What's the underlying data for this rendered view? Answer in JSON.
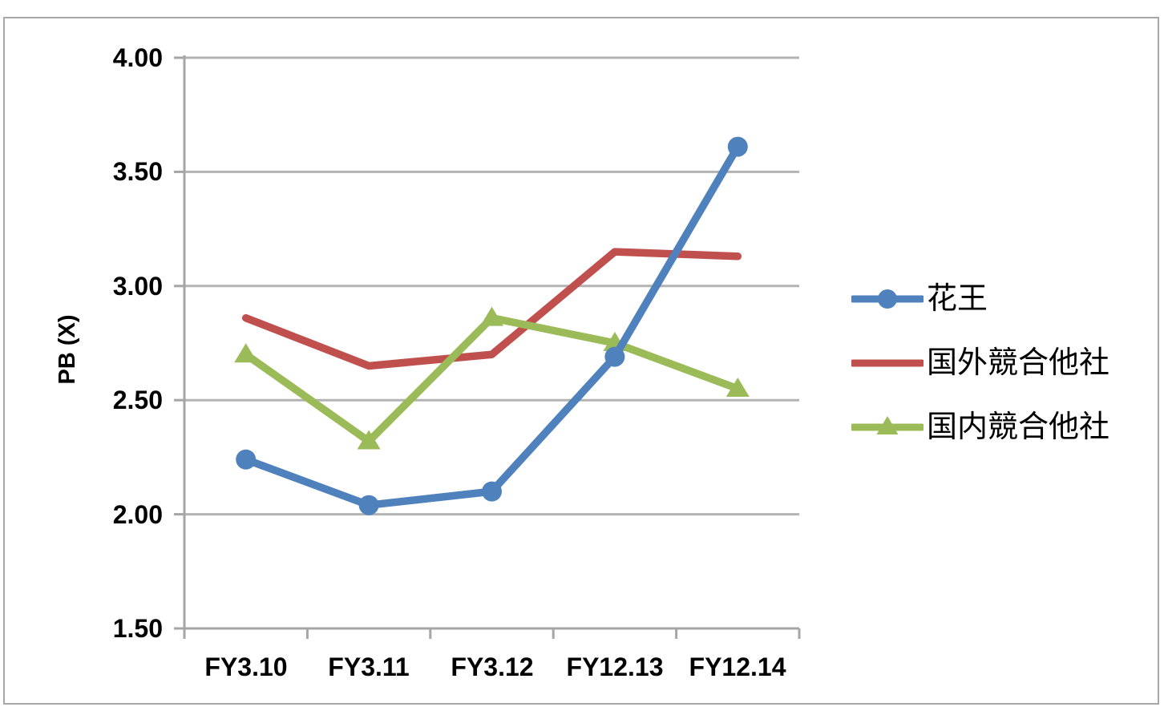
{
  "chart_data": {
    "type": "line",
    "title": "",
    "xlabel": "",
    "ylabel": "PB (X)",
    "categories": [
      "FY3.10",
      "FY3.11",
      "FY3.12",
      "FY12.13",
      "FY12.14"
    ],
    "series": [
      {
        "name": "花王",
        "color": "#4F81BD",
        "marker": "circle",
        "values": [
          2.24,
          2.04,
          2.1,
          2.69,
          3.61
        ]
      },
      {
        "name": "国外競合他社",
        "color": "#C0504D",
        "marker": "none",
        "values": [
          2.86,
          2.65,
          2.7,
          3.15,
          3.13
        ]
      },
      {
        "name": "国内競合他社",
        "color": "#9BBB59",
        "marker": "triangle",
        "values": [
          2.7,
          2.32,
          2.86,
          2.75,
          2.55
        ]
      }
    ],
    "ylim": [
      1.5,
      4.0
    ],
    "y_tick_step": 0.5,
    "y_tick_labels": [
      "4.00",
      "3.50",
      "3.00",
      "2.50",
      "2.00",
      "1.50"
    ],
    "grid": "horizontal-major",
    "legend_position": "right"
  },
  "colors": {
    "gridline": "#B3B3B3",
    "axis": "#A6A6A6",
    "frame_border": "#A8A8A8",
    "background": "#FFFFFF",
    "text": "#000000"
  }
}
